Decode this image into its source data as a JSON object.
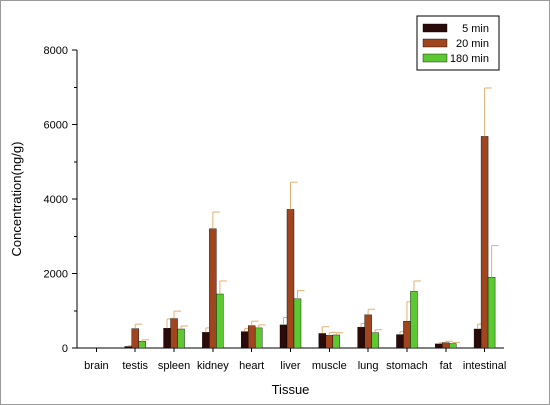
{
  "chart_data": {
    "type": "bar",
    "title": "",
    "xlabel": "Tissue",
    "ylabel": "Concentration(ng/g)",
    "ylim": [
      0,
      8000
    ],
    "yticks": [
      0,
      2000,
      4000,
      6000,
      8000
    ],
    "grid": false,
    "legend_position": "top-right",
    "categories": [
      "brain",
      "testis",
      "spleen",
      "kidney",
      "heart",
      "liver",
      "muscle",
      "lung",
      "stomach",
      "fat",
      "intestinal"
    ],
    "series": [
      {
        "name": "5 min",
        "color": "#2b0a0a",
        "values": [
          0,
          40,
          530,
          420,
          440,
          620,
          390,
          560,
          360,
          110,
          510
        ],
        "errors": [
          0,
          20,
          250,
          120,
          80,
          200,
          180,
          100,
          80,
          30,
          130
        ]
      },
      {
        "name": "20 min",
        "color": "#a0451e",
        "values": [
          0,
          520,
          790,
          3200,
          600,
          3720,
          340,
          890,
          720,
          140,
          5680
        ],
        "errors": [
          0,
          120,
          200,
          450,
          120,
          730,
          80,
          150,
          520,
          40,
          1300
        ]
      },
      {
        "name": "180 min",
        "color": "#5cc832",
        "values": [
          0,
          180,
          510,
          1450,
          540,
          1320,
          350,
          410,
          1520,
          120,
          1900
        ],
        "errors": [
          0,
          40,
          80,
          350,
          80,
          220,
          60,
          80,
          280,
          30,
          850
        ]
      }
    ],
    "error_bar_color": "#e0b070",
    "ytick_labels": [
      "0",
      "2000",
      "4000",
      "6000",
      "8000"
    ]
  }
}
